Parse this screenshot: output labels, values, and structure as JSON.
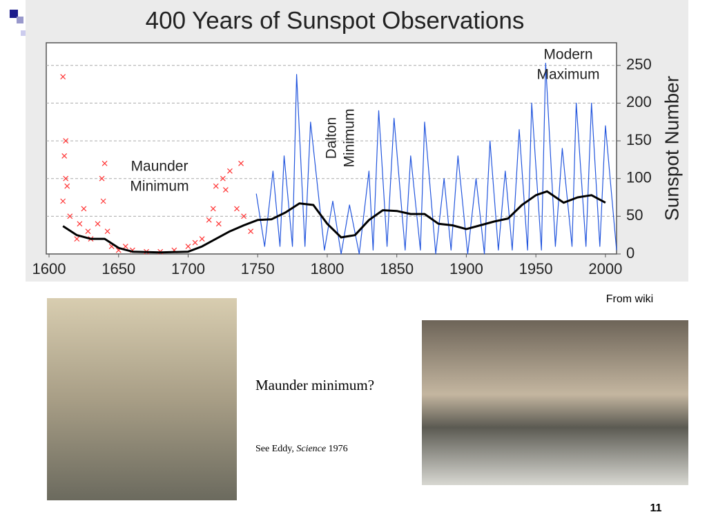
{
  "chart_data": {
    "type": "line",
    "title": "400 Years of Sunspot Observations",
    "y_label": "Sunspot Number",
    "xlim": [
      1598,
      2008
    ],
    "ylim": [
      0,
      280
    ],
    "xticks": [
      1600,
      1650,
      1700,
      1750,
      1800,
      1850,
      1900,
      1950,
      2000
    ],
    "yticks": [
      0,
      50,
      100,
      150,
      200,
      250
    ],
    "grid": true,
    "y_axis_side": "right",
    "annotations": [
      [
        "Maunder",
        "Minimum"
      ],
      [
        "Dalton",
        "Minimum"
      ],
      [
        "Modern",
        "Maximum"
      ]
    ],
    "series": [
      {
        "color": "#ff3333",
        "marker": "cross",
        "x": [
          1610,
          1612,
          1611,
          1612,
          1613,
          1610,
          1615,
          1620,
          1622,
          1625,
          1628,
          1630,
          1635,
          1638,
          1639,
          1640,
          1642,
          1645,
          1650,
          1655,
          1660,
          1670,
          1680,
          1690,
          1700,
          1705,
          1710,
          1715,
          1718,
          1720,
          1722,
          1725,
          1727,
          1730,
          1735,
          1738,
          1740,
          1745
        ],
        "values": [
          235,
          150,
          130,
          100,
          90,
          70,
          50,
          20,
          40,
          60,
          30,
          20,
          40,
          100,
          70,
          120,
          30,
          10,
          5,
          10,
          5,
          3,
          3,
          5,
          10,
          15,
          20,
          45,
          60,
          90,
          40,
          100,
          85,
          110,
          60,
          120,
          50,
          30
        ]
      },
      {
        "color": "#2255dd",
        "marker": "none",
        "x": [
          1749,
          1755,
          1761,
          1766,
          1769,
          1775,
          1778,
          1784,
          1788,
          1798,
          1804,
          1810,
          1816,
          1823,
          1830,
          1833,
          1837,
          1843,
          1848,
          1856,
          1860,
          1867,
          1870,
          1878,
          1884,
          1889,
          1894,
          1901,
          1907,
          1913,
          1917,
          1923,
          1928,
          1933,
          1938,
          1944,
          1947,
          1954,
          1957,
          1964,
          1969,
          1976,
          1979,
          1986,
          1990,
          1996,
          2000,
          2008
        ],
        "values": [
          80,
          10,
          110,
          10,
          130,
          10,
          238,
          10,
          175,
          5,
          70,
          0,
          65,
          0,
          110,
          5,
          190,
          10,
          180,
          5,
          130,
          5,
          175,
          0,
          100,
          5,
          130,
          0,
          100,
          0,
          150,
          5,
          110,
          5,
          165,
          5,
          200,
          5,
          253,
          10,
          140,
          10,
          200,
          10,
          200,
          10,
          170,
          5
        ]
      },
      {
        "color": "#000000",
        "marker": "none",
        "width": 3,
        "x": [
          1610,
          1620,
          1630,
          1640,
          1650,
          1660,
          1680,
          1700,
          1710,
          1720,
          1730,
          1740,
          1750,
          1760,
          1770,
          1780,
          1790,
          1800,
          1810,
          1820,
          1830,
          1840,
          1850,
          1860,
          1870,
          1880,
          1890,
          1900,
          1910,
          1920,
          1930,
          1940,
          1950,
          1958,
          1970,
          1980,
          1990,
          2000
        ],
        "values": [
          37,
          25,
          20,
          20,
          8,
          3,
          2,
          3,
          10,
          20,
          30,
          38,
          45,
          46,
          55,
          67,
          65,
          40,
          22,
          25,
          45,
          58,
          57,
          53,
          53,
          40,
          38,
          33,
          38,
          43,
          47,
          65,
          78,
          83,
          68,
          75,
          78,
          68
        ]
      }
    ]
  },
  "slide": {
    "source": "From wiki",
    "question": "Maunder minimum?",
    "reference": [
      "See Eddy, ",
      "Science",
      " 1976"
    ],
    "page_number": "11"
  }
}
